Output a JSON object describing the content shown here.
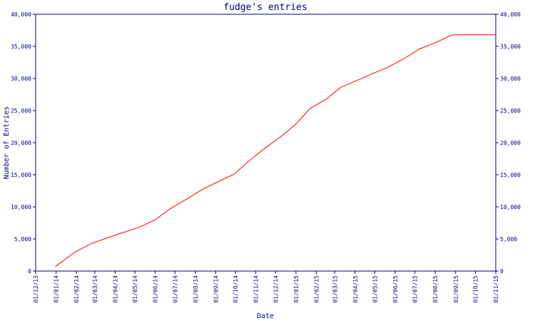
{
  "chart_data": {
    "type": "line",
    "title": "fudge's entries",
    "xlabel": "Date",
    "ylabel": "Number of Entries",
    "x_tick_labels": [
      "01/12/13",
      "01/01/14",
      "01/02/14",
      "01/03/14",
      "01/04/14",
      "01/05/14",
      "01/06/14",
      "01/07/14",
      "01/08/14",
      "01/09/14",
      "01/10/14",
      "01/11/14",
      "01/12/14",
      "01/01/15",
      "01/02/15",
      "01/03/15",
      "01/04/15",
      "01/05/15",
      "01/06/15",
      "01/07/15",
      "01/08/15",
      "01/09/15",
      "01/10/15",
      "01/11/15"
    ],
    "y_tick_labels": [
      "0",
      "5,000",
      "10,000",
      "15,000",
      "20,000",
      "25,000",
      "30,000",
      "35,000",
      "40,000"
    ],
    "y_ticks": [
      0,
      5000,
      10000,
      15000,
      20000,
      25000,
      30000,
      35000,
      40000
    ],
    "ylim": [
      0,
      40000
    ],
    "x_range": [
      "2013-12-01",
      "2015-11-01"
    ],
    "grid": false,
    "colors": {
      "line": "#ff0000",
      "axis": "#000080",
      "text": "#000080"
    },
    "series": [
      {
        "x": [
          "2013-12-31",
          "2014-01-29",
          "2014-02-24",
          "2014-03-18",
          "2014-04-10",
          "2014-05-07",
          "2014-06-01",
          "2014-06-25",
          "2014-07-20",
          "2014-08-13",
          "2014-09-06",
          "2014-09-29",
          "2014-10-22",
          "2014-11-17",
          "2014-12-11",
          "2015-01-03",
          "2015-01-22",
          "2015-02-15",
          "2015-03-10",
          "2015-04-02",
          "2015-04-26",
          "2015-05-20",
          "2015-06-13",
          "2015-07-08",
          "2015-08-02",
          "2015-08-27",
          "2015-09-20",
          "2015-10-14",
          "2015-11-01"
        ],
        "values": [
          700,
          2900,
          4300,
          5100,
          5900,
          6800,
          8000,
          9800,
          11300,
          12800,
          14000,
          15100,
          17200,
          19300,
          21100,
          23100,
          25300,
          26700,
          28600,
          29600,
          30700,
          31700,
          33000,
          34600,
          35600,
          36800,
          36800,
          36800,
          36800
        ]
      }
    ]
  }
}
